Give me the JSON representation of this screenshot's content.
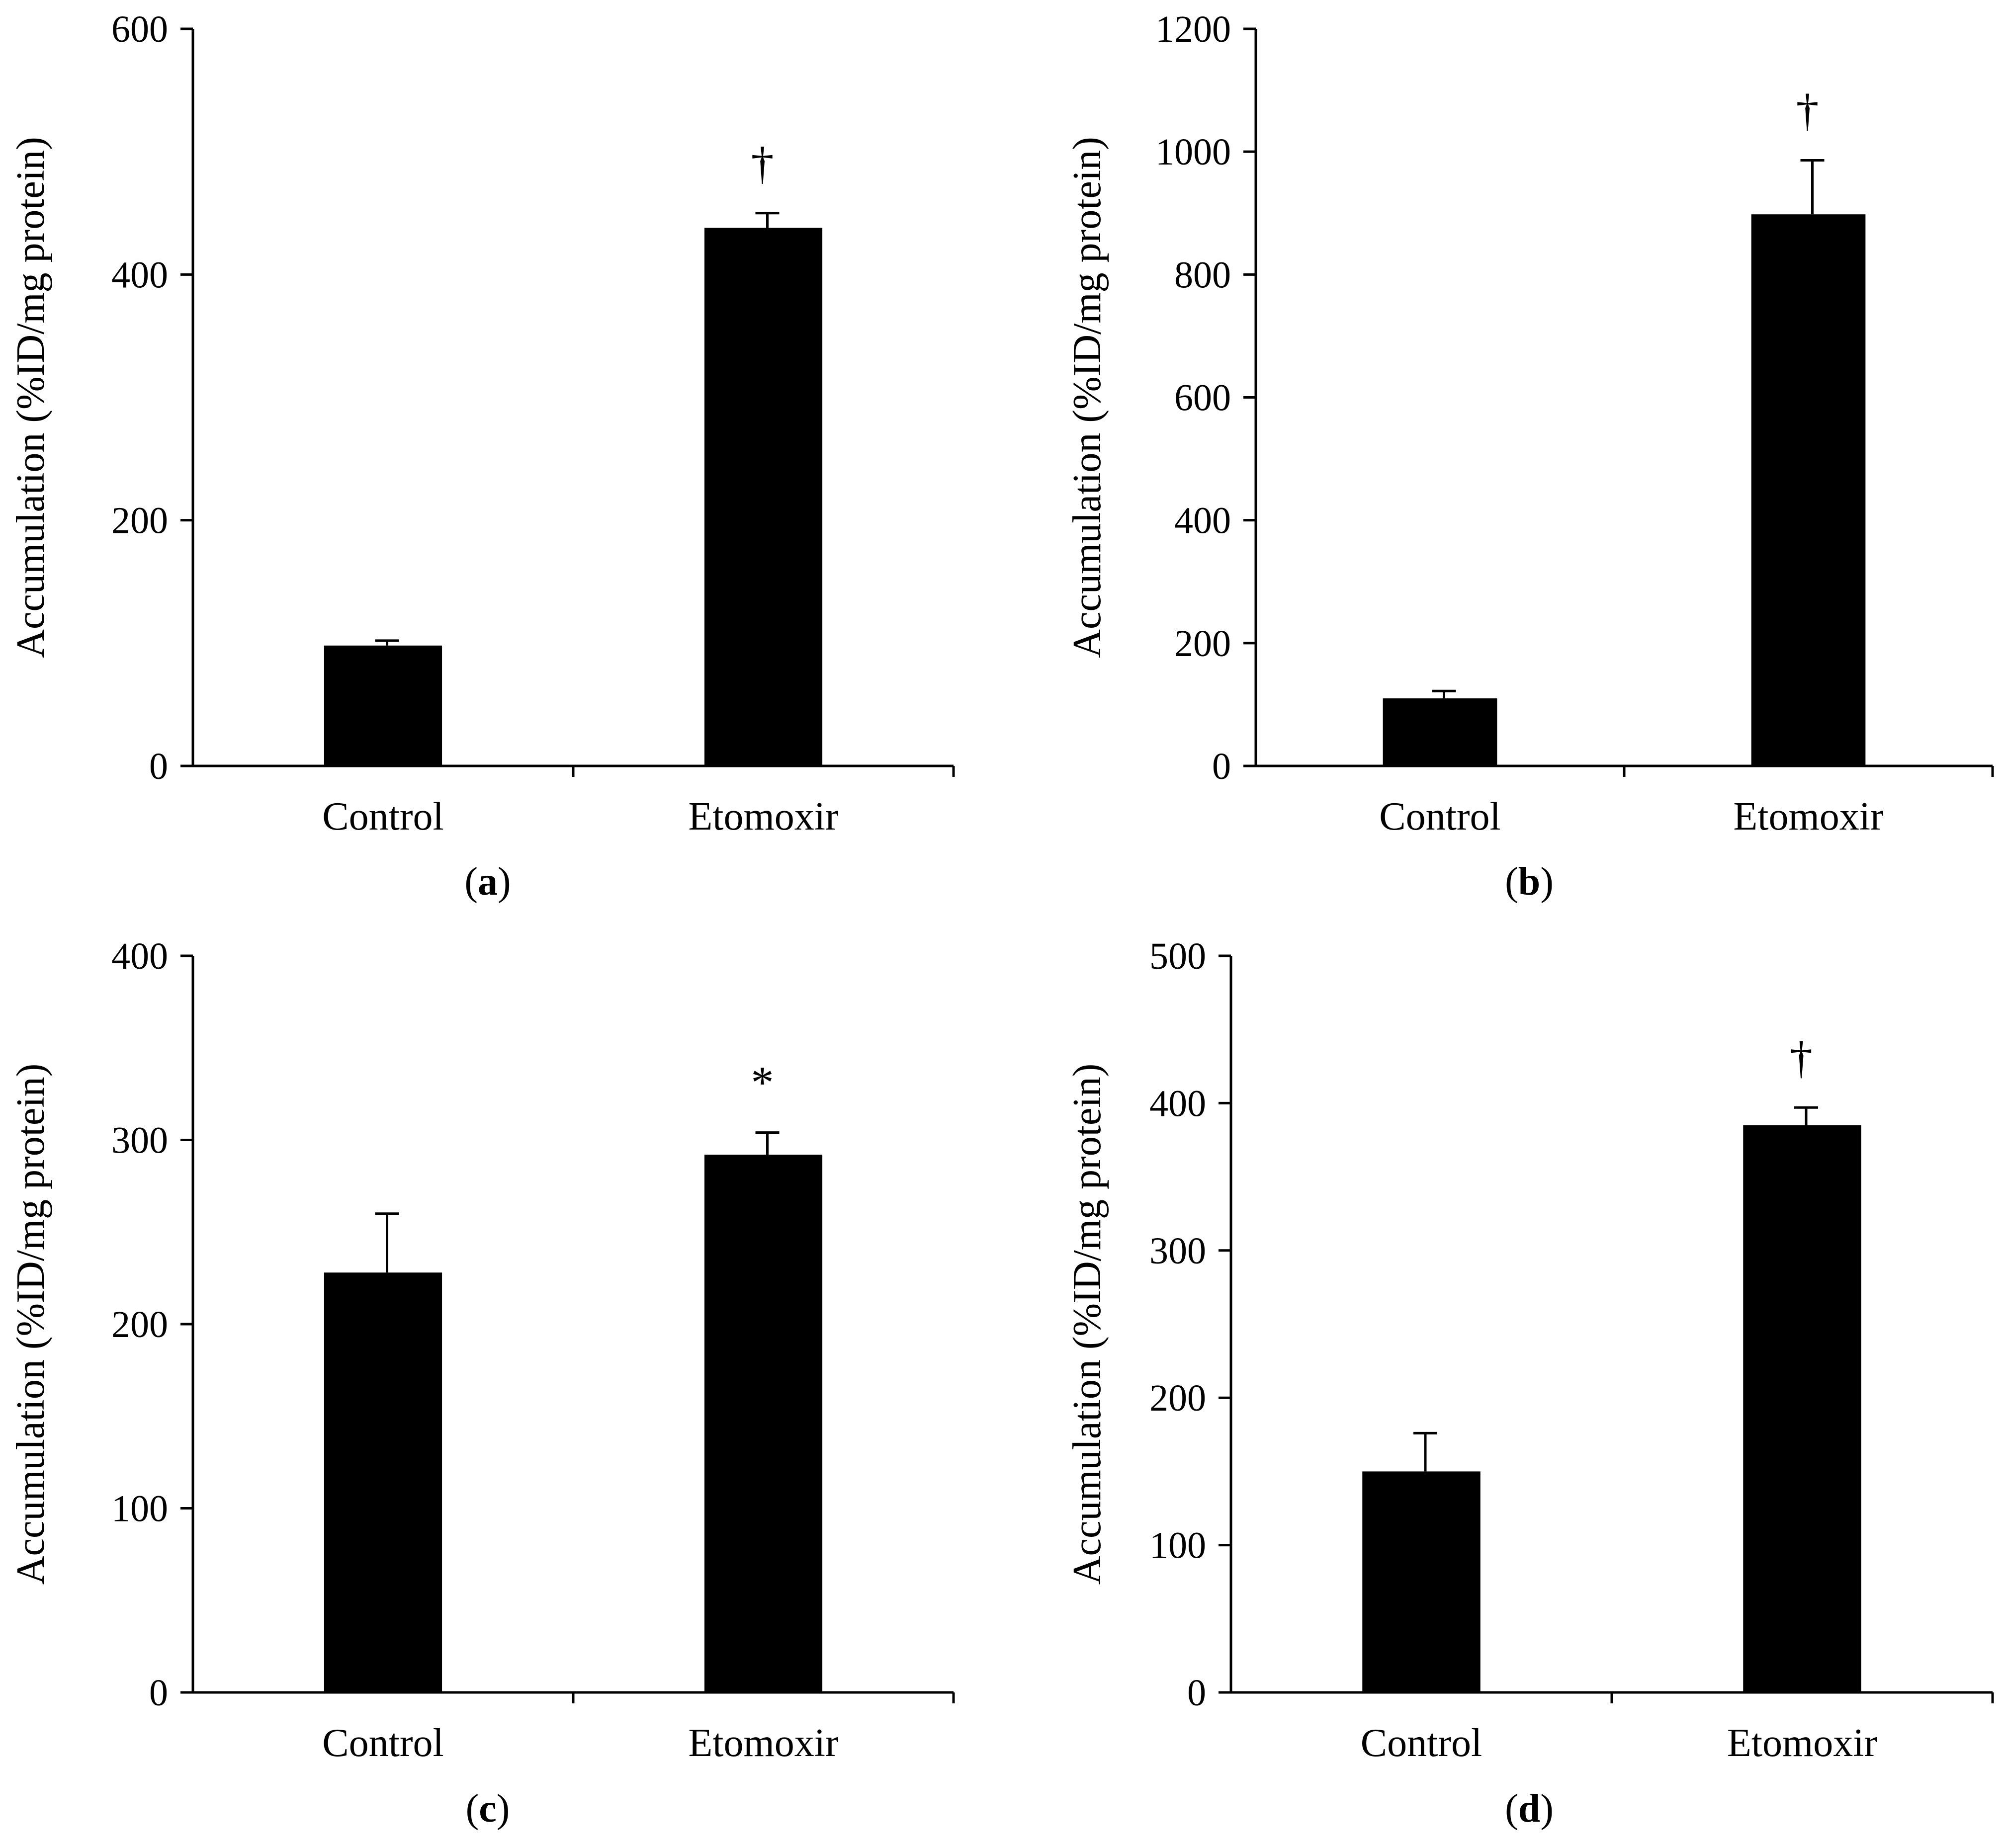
{
  "figure": {
    "panels": [
      "(a)",
      "(b)",
      "(c)",
      "(d)"
    ]
  },
  "chart_data": [
    {
      "panel": "(a)",
      "type": "bar",
      "categories": [
        "Control",
        "Etomoxir"
      ],
      "values": [
        98,
        438
      ],
      "errors": [
        4,
        12
      ],
      "significance": [
        "",
        "†"
      ],
      "ylabel": "Accumulation (%ID/mg protein)",
      "xlabel": "",
      "ylim": [
        0,
        600
      ],
      "yticks": [
        0,
        200,
        400,
        600
      ],
      "grid": false,
      "color": "#000000"
    },
    {
      "panel": "(b)",
      "type": "bar",
      "categories": [
        "Control",
        "Etomoxir"
      ],
      "values": [
        110,
        898
      ],
      "errors": [
        12,
        88
      ],
      "significance": [
        "",
        "†"
      ],
      "ylabel": "Accumulation (%ID/mg protein)",
      "xlabel": "",
      "ylim": [
        0,
        1200
      ],
      "yticks": [
        0,
        200,
        400,
        600,
        800,
        1000,
        1200
      ],
      "grid": false,
      "color": "#000000"
    },
    {
      "panel": "(c)",
      "type": "bar",
      "categories": [
        "Control",
        "Etomoxir"
      ],
      "values": [
        228,
        292
      ],
      "errors": [
        32,
        12
      ],
      "significance": [
        "",
        "*"
      ],
      "ylabel": "Accumulation (%ID/mg protein)",
      "xlabel": "",
      "ylim": [
        0,
        400
      ],
      "yticks": [
        0,
        100,
        200,
        300,
        400
      ],
      "grid": false,
      "color": "#000000"
    },
    {
      "panel": "(d)",
      "type": "bar",
      "categories": [
        "Control",
        "Etomoxir"
      ],
      "values": [
        150,
        385
      ],
      "errors": [
        26,
        12
      ],
      "significance": [
        "",
        "†"
      ],
      "ylabel": "Accumulation (%ID/mg protein)",
      "xlabel": "",
      "ylim": [
        0,
        500
      ],
      "yticks": [
        0,
        100,
        200,
        300,
        400,
        500
      ],
      "grid": false,
      "color": "#000000"
    }
  ]
}
